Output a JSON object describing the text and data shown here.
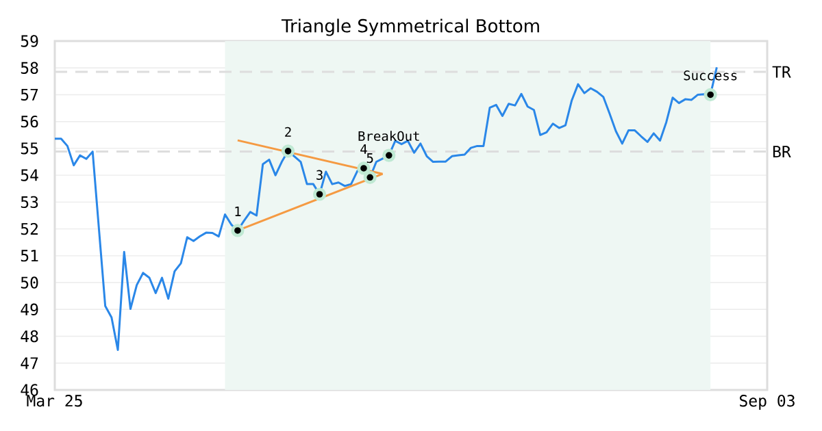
{
  "chart_data": {
    "type": "line",
    "title": "Triangle Symmetrical Bottom",
    "categories": [
      "Mar 25",
      null,
      null,
      null,
      null,
      null,
      null,
      null,
      null,
      null,
      null,
      null,
      null,
      null,
      null,
      null,
      null,
      null,
      null,
      null,
      null,
      null,
      null,
      null,
      null,
      null,
      null,
      null,
      null,
      null,
      null,
      null,
      null,
      null,
      null,
      null,
      null,
      null,
      null,
      null,
      null,
      null,
      null,
      null,
      null,
      null,
      null,
      null,
      null,
      null,
      null,
      null,
      null,
      null,
      null,
      null,
      null,
      null,
      null,
      null,
      null,
      null,
      null,
      null,
      null,
      null,
      null,
      null,
      null,
      null,
      null,
      null,
      null,
      null,
      null,
      null,
      null,
      null,
      null,
      null,
      null,
      null,
      null,
      null,
      null,
      null,
      null,
      null,
      null,
      null,
      null,
      null,
      null,
      null,
      null,
      null,
      null,
      null,
      null,
      null,
      null,
      null,
      null,
      null,
      null,
      null,
      null,
      null,
      null,
      null,
      null,
      null,
      null,
      "Sep 03"
    ],
    "ylim": [
      46,
      59
    ],
    "yticks": [
      46,
      47,
      48,
      49,
      50,
      51,
      52,
      53,
      54,
      55,
      56,
      57,
      58,
      59
    ],
    "grid": "y",
    "line_style": "solid",
    "series": [
      {
        "color": "#2a87e8",
        "values": [
          55.36,
          55.36,
          55.09,
          54.37,
          54.74,
          54.61,
          54.88,
          52.0,
          49.13,
          48.7,
          47.49,
          51.14,
          49.02,
          49.91,
          50.36,
          50.18,
          49.61,
          50.18,
          49.4,
          50.42,
          50.72,
          51.69,
          51.55,
          51.72,
          51.86,
          51.85,
          51.72,
          52.54,
          52.16,
          51.94,
          52.3,
          52.63,
          52.5,
          54.41,
          54.58,
          54.0,
          54.5,
          54.9,
          54.7,
          54.5,
          53.67,
          53.67,
          53.29,
          54.13,
          53.67,
          53.73,
          53.6,
          53.67,
          54.16,
          54.26,
          53.92,
          54.5,
          54.62,
          54.74,
          55.28,
          55.16,
          55.28,
          54.84,
          55.18,
          54.71,
          54.5,
          54.51,
          54.51,
          54.71,
          54.74,
          54.77,
          55.02,
          55.09,
          55.09,
          56.52,
          56.62,
          56.21,
          56.66,
          56.6,
          57.03,
          56.56,
          56.43,
          55.5,
          55.6,
          55.92,
          55.76,
          55.86,
          56.79,
          57.39,
          57.06,
          57.24,
          57.11,
          56.92,
          56.3,
          55.64,
          55.18,
          55.67,
          55.67,
          55.45,
          55.24,
          55.56,
          55.29,
          55.98,
          56.89,
          56.69,
          56.83,
          56.81,
          57.0,
          57.02,
          57.0,
          58.02,
          null,
          null,
          null,
          null,
          null,
          null,
          null,
          null
        ]
      },
      {
        "type": "line",
        "color": "#f59a42",
        "values": [
          null,
          null,
          null,
          null,
          null,
          null,
          null,
          null,
          null,
          null,
          null,
          null,
          null,
          null,
          null,
          null,
          null,
          null,
          null,
          null,
          null,
          null,
          null,
          null,
          null,
          null,
          null,
          null,
          null,
          55.3,
          null,
          null,
          null,
          null,
          null,
          null,
          null,
          null,
          null,
          null,
          null,
          null,
          null,
          null,
          null,
          null,
          null,
          null,
          null,
          null,
          null,
          null,
          54.05,
          null,
          null,
          null,
          null,
          null,
          null,
          null,
          null,
          null,
          null,
          null,
          null,
          null,
          null,
          null,
          null,
          null,
          null,
          null,
          null,
          null,
          null,
          null,
          null,
          null,
          null,
          null,
          null,
          null,
          null,
          null,
          null,
          null,
          null,
          null,
          null,
          null,
          null,
          null,
          null,
          null,
          null,
          null,
          null,
          null,
          null,
          null,
          null,
          null,
          null,
          null,
          null,
          null,
          null,
          null,
          null,
          null,
          null,
          null,
          null,
          null
        ]
      },
      {
        "type": "line",
        "color": "#f59a42",
        "values": [
          null,
          null,
          null,
          null,
          null,
          null,
          null,
          null,
          null,
          null,
          null,
          null,
          null,
          null,
          null,
          null,
          null,
          null,
          null,
          null,
          null,
          null,
          null,
          null,
          null,
          null,
          null,
          null,
          null,
          51.94,
          null,
          null,
          null,
          null,
          null,
          null,
          null,
          null,
          null,
          null,
          null,
          null,
          null,
          null,
          null,
          null,
          null,
          null,
          null,
          null,
          null,
          null,
          54.05,
          null,
          null,
          null,
          null,
          null,
          null,
          null,
          null,
          null,
          null,
          null,
          null,
          null,
          null,
          null,
          null,
          null,
          null,
          null,
          null,
          null,
          null,
          null,
          null,
          null,
          null,
          null,
          null,
          null,
          null,
          null,
          null,
          null,
          null,
          null,
          null,
          null,
          null,
          null,
          null,
          null,
          null,
          null,
          null,
          null,
          null,
          null,
          null,
          null,
          null,
          null,
          null,
          null,
          null,
          null,
          null,
          null,
          null,
          null,
          null,
          null
        ]
      },
      {
        "type": "scatter",
        "color": "#000000",
        "values": [
          null,
          null,
          null,
          null,
          null,
          null,
          null,
          null,
          null,
          null,
          null,
          null,
          null,
          null,
          null,
          null,
          null,
          null,
          null,
          null,
          null,
          null,
          null,
          null,
          null,
          null,
          null,
          null,
          null,
          51.94,
          null,
          null,
          null,
          null,
          null,
          null,
          null,
          54.9,
          null,
          null,
          null,
          null,
          53.29,
          null,
          null,
          null,
          null,
          null,
          null,
          54.26,
          53.92,
          null,
          null,
          54.74,
          null,
          null,
          null,
          null,
          null,
          null,
          null,
          null,
          null,
          null,
          null,
          null,
          null,
          null,
          null,
          null,
          null,
          null,
          null,
          null,
          null,
          null,
          null,
          null,
          null,
          null,
          null,
          null,
          null,
          null,
          null,
          null,
          null,
          null,
          null,
          null,
          null,
          null,
          null,
          null,
          null,
          null,
          null,
          null,
          null,
          null,
          null,
          null,
          null,
          null,
          57.0,
          null,
          null,
          null,
          null,
          null,
          null,
          null,
          null,
          null
        ]
      }
    ],
    "annotations": [
      {
        "text": "1",
        "y": 51.94
      },
      {
        "text": "2",
        "y": 54.9
      },
      {
        "text": "3",
        "y": 53.29
      },
      {
        "text": "4",
        "y": 54.26
      },
      {
        "text": "5",
        "y": 53.92
      },
      {
        "text": "BreakOut",
        "y": 54.74
      },
      {
        "text": "Success",
        "y": 57.0
      }
    ],
    "ref_lines": [
      {
        "axis": "y",
        "value": 57.85,
        "label": "TR",
        "color": "#dddddd",
        "line_style": "dashed"
      },
      {
        "axis": "y",
        "value": 54.88,
        "label": "BR",
        "color": "#dddddd",
        "line_style": "dashed"
      }
    ]
  }
}
